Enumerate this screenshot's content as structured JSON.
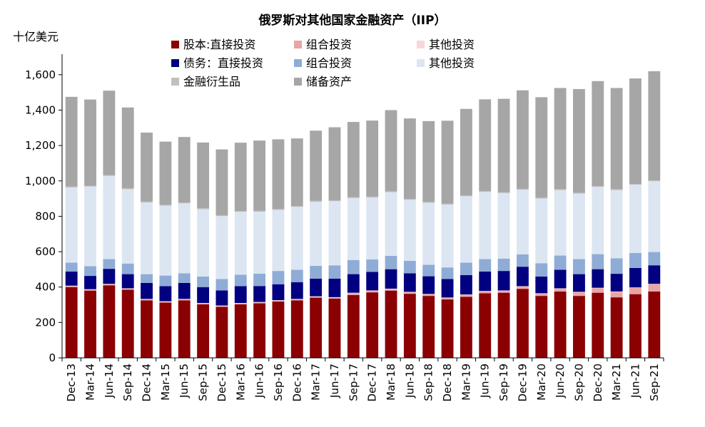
{
  "chart_data": {
    "type": "bar",
    "stacked": true,
    "title": "俄罗斯对其他国家金融资产（IIP）",
    "ylabel": "十亿美元",
    "xlabel": "",
    "ylim": [
      0,
      1700
    ],
    "yticks": [
      "0",
      "200",
      "400",
      "600",
      "800",
      "1,000",
      "1,200",
      "1,400",
      "1,600"
    ],
    "ytick_values": [
      0,
      200,
      400,
      600,
      800,
      1000,
      1200,
      1400,
      1600
    ],
    "grid": false,
    "legend_position": "top-left",
    "categories": [
      "Dec-13",
      "Mar-14",
      "Jun-14",
      "Sep-14",
      "Dec-14",
      "Mar-15",
      "Jun-15",
      "Sep-15",
      "Dec-15",
      "Mar-16",
      "Jun-16",
      "Sep-16",
      "Dec-16",
      "Mar-17",
      "Jun-17",
      "Sep-17",
      "Dec-17",
      "Mar-18",
      "Jun-18",
      "Sep-18",
      "Dec-18",
      "Mar-19",
      "Jun-19",
      "Sep-19",
      "Dec-19",
      "Mar-20",
      "Jun-20",
      "Sep-20",
      "Dec-20",
      "Mar-21",
      "Jun-21",
      "Sep-21"
    ],
    "series": [
      {
        "name": "股本:直接投资",
        "color": "#8B0000",
        "values": [
          400,
          380,
          410,
          385,
          325,
          312,
          325,
          302,
          288,
          302,
          308,
          318,
          325,
          340,
          335,
          355,
          370,
          380,
          362,
          350,
          330,
          345,
          365,
          368,
          390,
          350,
          375,
          350,
          368,
          342,
          360,
          375
        ]
      },
      {
        "name": "组合投资",
        "color": "#E8A5A5",
        "values": [
          5,
          5,
          5,
          5,
          5,
          5,
          5,
          5,
          5,
          5,
          5,
          5,
          5,
          5,
          5,
          10,
          8,
          8,
          8,
          8,
          8,
          10,
          10,
          10,
          12,
          12,
          15,
          20,
          25,
          30,
          35,
          40
        ]
      },
      {
        "name": "其他投资",
        "color": "#F7D6DA",
        "values": [
          3,
          3,
          3,
          3,
          3,
          3,
          3,
          3,
          3,
          3,
          3,
          3,
          3,
          3,
          3,
          3,
          3,
          3,
          3,
          3,
          3,
          3,
          3,
          3,
          3,
          3,
          3,
          3,
          3,
          3,
          3,
          3
        ]
      },
      {
        "name": "债务：直接投资",
        "color": "#000080",
        "values": [
          80,
          75,
          85,
          80,
          90,
          85,
          90,
          90,
          85,
          95,
          90,
          90,
          95,
          100,
          105,
          105,
          105,
          110,
          105,
          100,
          105,
          110,
          110,
          110,
          110,
          95,
          105,
          100,
          105,
          100,
          110,
          105
        ]
      },
      {
        "name": "组合投资",
        "color": "#8FACD6",
        "values": [
          50,
          55,
          55,
          60,
          50,
          60,
          55,
          60,
          65,
          65,
          70,
          75,
          70,
          72,
          75,
          80,
          70,
          75,
          70,
          65,
          65,
          70,
          70,
          70,
          70,
          75,
          80,
          85,
          85,
          88,
          85,
          75
        ]
      },
      {
        "name": "其他投资",
        "color": "#DCE6F2",
        "values": [
          425,
          450,
          470,
          420,
          405,
          395,
          395,
          380,
          355,
          355,
          350,
          345,
          355,
          362,
          362,
          350,
          350,
          360,
          345,
          350,
          355,
          375,
          380,
          370,
          365,
          365,
          370,
          370,
          380,
          385,
          385,
          400
        ]
      },
      {
        "name": "金融衍生品",
        "color": "#C0C0C0",
        "values": [
          5,
          5,
          5,
          5,
          5,
          5,
          5,
          5,
          5,
          5,
          5,
          5,
          5,
          5,
          5,
          5,
          5,
          5,
          5,
          5,
          5,
          5,
          5,
          5,
          5,
          5,
          5,
          5,
          5,
          5,
          5,
          5
        ]
      },
      {
        "name": "储备资产",
        "color": "#A6A6A6",
        "values": [
          507,
          487,
          477,
          457,
          390,
          357,
          370,
          372,
          372,
          386,
          397,
          394,
          382,
          397,
          413,
          425,
          430,
          459,
          455,
          457,
          469,
          489,
          518,
          528,
          557,
          568,
          572,
          586,
          593,
          572,
          596,
          617
        ]
      }
    ]
  },
  "legend": [
    {
      "label": "股本:直接投资",
      "color": "#8B0000"
    },
    {
      "label": "组合投资",
      "color": "#E8A5A5"
    },
    {
      "label": "其他投资",
      "color": "#F7D6DA"
    },
    {
      "label": "债务：直接投资",
      "color": "#000080"
    },
    {
      "label": "组合投资",
      "color": "#8FACD6"
    },
    {
      "label": "其他投资",
      "color": "#DCE6F2"
    },
    {
      "label": "金融衍生品",
      "color": "#C0C0C0"
    },
    {
      "label": "储备资产",
      "color": "#A6A6A6"
    }
  ]
}
